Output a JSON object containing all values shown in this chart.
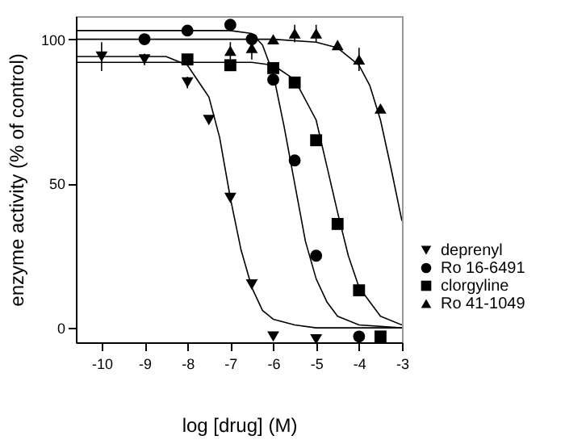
{
  "chart_data": {
    "type": "scatter",
    "xlabel": "log [drug] (M)",
    "ylabel": "enzyme activity (% of control)",
    "xlim": [
      -10.6,
      -3
    ],
    "xticks": [
      -10,
      -9,
      -8,
      -7,
      -6,
      -5,
      -4,
      -3
    ],
    "ylim": [
      -5,
      108
    ],
    "yticks": [
      0,
      50,
      100
    ],
    "grid": false,
    "legend": "bottom right",
    "series": [
      {
        "name": "deprenyl",
        "type": "scatter",
        "marker": "triangle-down",
        "color": "#000000",
        "x": [
          -10,
          -9,
          -8,
          -7.5,
          -7,
          -6.5,
          -6,
          -5
        ],
        "values": [
          94,
          93,
          85,
          72,
          45,
          15,
          -3,
          -4
        ],
        "errors": [
          5,
          2,
          2,
          null,
          null,
          null,
          null,
          null
        ]
      },
      {
        "name": "Ro 16-6491",
        "type": "scatter",
        "marker": "circle",
        "color": "#000000",
        "x": [
          -9,
          -8,
          -7,
          -6.5,
          -6,
          -5.5,
          -5,
          -4
        ],
        "values": [
          100,
          103,
          105,
          100,
          86,
          58,
          25,
          -3
        ]
      },
      {
        "name": "clorgyline",
        "type": "scatter",
        "marker": "square",
        "color": "#000000",
        "x": [
          -8,
          -7,
          -6,
          -5.5,
          -5,
          -4.5,
          -4,
          -3.5
        ],
        "values": [
          93,
          91,
          90,
          85,
          65,
          36,
          13,
          -3
        ]
      },
      {
        "name": "Ro 41-1049",
        "type": "scatter",
        "marker": "triangle",
        "color": "#000000",
        "x": [
          -7,
          -6.5,
          -6,
          -5.5,
          -5,
          -4.5,
          -4,
          -3.5
        ],
        "values": [
          96,
          97,
          100,
          102,
          102,
          98,
          93,
          76
        ],
        "errors": [
          3,
          4,
          null,
          3,
          3,
          null,
          4,
          null
        ]
      },
      {
        "type": "line",
        "color": "#000000",
        "x": [
          -10.6,
          -8.5,
          -8,
          -7.5,
          -7.25,
          -7,
          -6.75,
          -6.5,
          -6.25,
          -6,
          -5.5,
          -5,
          -3
        ],
        "values": [
          94,
          94,
          91,
          80,
          66,
          45,
          27,
          14,
          6,
          3,
          1,
          0,
          0
        ]
      },
      {
        "type": "line",
        "color": "#000000",
        "x": [
          -10.6,
          -7,
          -6.5,
          -6.25,
          -6,
          -5.75,
          -5.5,
          -5.25,
          -5,
          -4.75,
          -4.5,
          -4,
          -3
        ],
        "values": [
          103,
          103,
          102,
          98,
          88,
          70,
          50,
          30,
          17,
          9,
          4,
          1,
          0
        ]
      },
      {
        "type": "line",
        "color": "#000000",
        "x": [
          -10.6,
          -6.5,
          -6,
          -5.5,
          -5,
          -4.75,
          -4.5,
          -4.25,
          -4,
          -3.5,
          -3
        ],
        "values": [
          92,
          92,
          91,
          86,
          72,
          56,
          40,
          25,
          14,
          4,
          1
        ]
      },
      {
        "type": "line",
        "color": "#000000",
        "x": [
          -10.6,
          -6,
          -5,
          -4.5,
          -4,
          -3.75,
          -3.5,
          -3.25,
          -3
        ],
        "values": [
          100,
          100,
          99,
          97,
          91,
          84,
          72,
          55,
          37
        ]
      }
    ]
  }
}
